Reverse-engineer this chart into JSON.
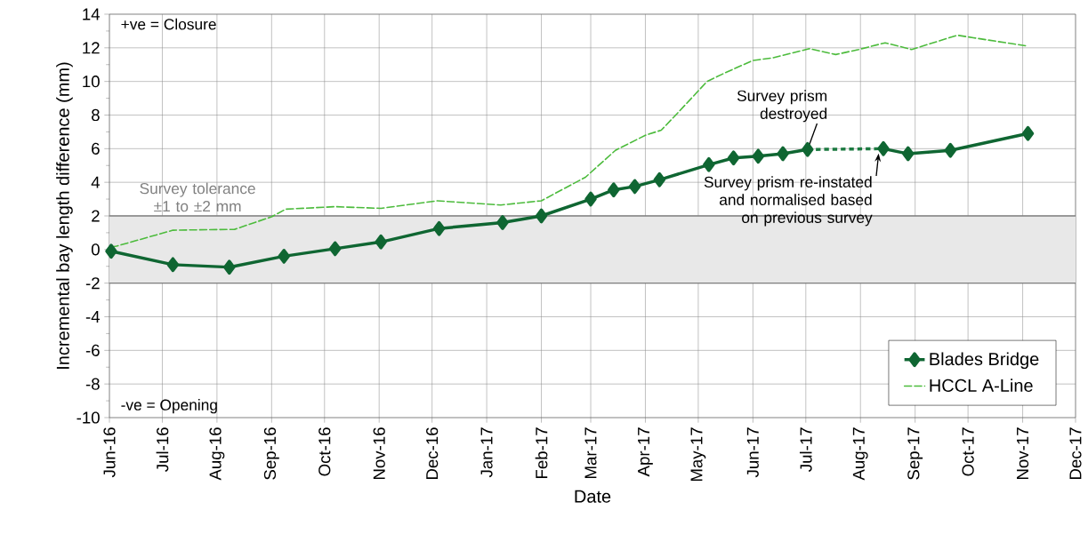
{
  "chart_data": {
    "type": "line",
    "xlabel": "Date",
    "ylabel": "Incremental bay length difference (mm)",
    "xlim": [
      "2016-06-01",
      "2017-12-01"
    ],
    "ylim": [
      -10,
      14
    ],
    "xticks": [
      {
        "value": "2016-06-01",
        "label": "Jun-16"
      },
      {
        "value": "2016-07-01",
        "label": "Jul-16"
      },
      {
        "value": "2016-08-01",
        "label": "Aug-16"
      },
      {
        "value": "2016-09-01",
        "label": "Sep-16"
      },
      {
        "value": "2016-10-01",
        "label": "Oct-16"
      },
      {
        "value": "2016-11-01",
        "label": "Nov-16"
      },
      {
        "value": "2016-12-01",
        "label": "Dec-16"
      },
      {
        "value": "2017-01-01",
        "label": "Jan-17"
      },
      {
        "value": "2017-02-01",
        "label": "Feb-17"
      },
      {
        "value": "2017-03-01",
        "label": "Mar-17"
      },
      {
        "value": "2017-04-01",
        "label": "Apr-17"
      },
      {
        "value": "2017-05-01",
        "label": "May-17"
      },
      {
        "value": "2017-06-01",
        "label": "Jun-17"
      },
      {
        "value": "2017-07-01",
        "label": "Jul-17"
      },
      {
        "value": "2017-08-01",
        "label": "Aug-17"
      },
      {
        "value": "2017-09-01",
        "label": "Sep-17"
      },
      {
        "value": "2017-10-01",
        "label": "Oct-17"
      },
      {
        "value": "2017-11-01",
        "label": "Nov-17"
      },
      {
        "value": "2017-12-01",
        "label": "Dec-17"
      }
    ],
    "yticks": [
      -10,
      -8,
      -6,
      -4,
      -2,
      0,
      2,
      4,
      6,
      8,
      10,
      12,
      14
    ],
    "grid": true,
    "legend": "bottom right",
    "series": [
      {
        "name": "Blades Bridge",
        "color": "#0f6632",
        "marker": "diamond",
        "line_style": "solid",
        "x": [
          "2016-06-02",
          "2016-07-07",
          "2016-08-08",
          "2016-09-08",
          "2016-10-07",
          "2016-11-02",
          "2016-12-05",
          "2017-01-10",
          "2017-02-01",
          "2017-03-01",
          "2017-03-14",
          "2017-03-26",
          "2017-04-09",
          "2017-05-07",
          "2017-05-21",
          "2017-06-04",
          "2017-06-18",
          "2017-07-02",
          "2017-07-23",
          "2017-08-14",
          "2017-08-28",
          "2017-09-21",
          "2017-11-04"
        ],
        "values": [
          -0.1,
          -0.9,
          -1.05,
          -0.4,
          0.05,
          0.45,
          1.25,
          1.6,
          2.0,
          3.0,
          3.55,
          3.75,
          4.15,
          5.05,
          5.45,
          5.55,
          5.7,
          5.95,
          null,
          6.0,
          5.7,
          5.9,
          6.9
        ]
      },
      {
        "name": "HCCL A-Line",
        "color": "#4cbb3c",
        "marker": "none",
        "line_style": "dashed",
        "x": [
          "2016-06-02",
          "2016-06-05",
          "2016-07-07",
          "2016-08-11",
          "2016-09-01",
          "2016-09-09",
          "2016-10-07",
          "2016-11-02",
          "2016-12-04",
          "2017-01-09",
          "2017-02-01",
          "2017-02-17",
          "2017-02-26",
          "2017-03-15",
          "2017-04-01",
          "2017-04-10",
          "2017-04-20",
          "2017-05-06",
          "2017-05-17",
          "2017-06-01",
          "2017-06-12",
          "2017-07-03",
          "2017-07-18",
          "2017-07-31",
          "2017-08-15",
          "2017-08-30",
          "2017-09-25",
          "2017-10-04",
          "2017-11-04"
        ],
        "values": [
          0.15,
          0.2,
          1.15,
          1.2,
          1.95,
          2.4,
          2.55,
          2.45,
          2.9,
          2.65,
          2.9,
          3.8,
          4.3,
          5.9,
          6.8,
          7.1,
          8.2,
          10.0,
          10.55,
          11.25,
          11.4,
          11.95,
          11.6,
          11.9,
          12.3,
          11.9,
          12.75,
          12.6,
          12.1
        ]
      },
      {
        "color": "#1b7a40",
        "marker": "none",
        "line_style": "dotted",
        "x": [
          "2017-07-02",
          "2017-08-14"
        ],
        "values": [
          5.95,
          6.0
        ]
      }
    ],
    "bands": [
      {
        "axis": "y",
        "from": -2,
        "to": 2,
        "label": "Survey tolerance ±1 to ±2 mm",
        "color": "#e8e8e8"
      }
    ],
    "annotations": [
      "+ve = Closure",
      "-ve = Opening",
      {
        "text": "Survey prism destroyed",
        "x": "2017-07-02",
        "y": 5.95
      },
      {
        "text": "Survey prism re-instated and normalised based on previous survey",
        "x": "2017-08-14",
        "y": 6.0
      }
    ]
  }
}
